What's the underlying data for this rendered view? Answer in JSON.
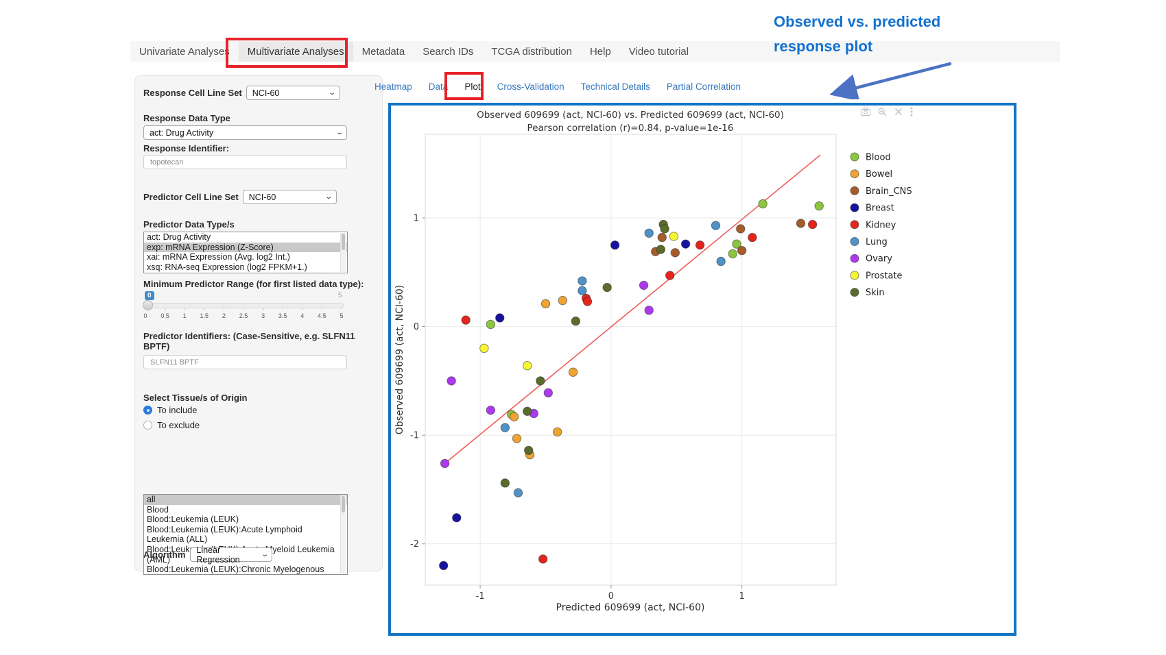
{
  "callout": {
    "line1": "Observed  vs. predicted",
    "line2": "response plot",
    "color": "#1371d1"
  },
  "nav": {
    "items": [
      {
        "label": "Univariate Analyses",
        "active": false
      },
      {
        "label": "Multivariate Analyses",
        "active": true
      },
      {
        "label": "Metadata",
        "active": false
      },
      {
        "label": "Search IDs",
        "active": false
      },
      {
        "label": "TCGA distribution",
        "active": false
      },
      {
        "label": "Help",
        "active": false
      },
      {
        "label": "Video tutorial",
        "active": false
      }
    ]
  },
  "sidebar": {
    "response_cell_line_set": {
      "label": "Response Cell Line Set",
      "value": "NCI-60"
    },
    "response_data_type": {
      "label": "Response Data Type",
      "value": "act: Drug Activity"
    },
    "response_identifier": {
      "label": "Response Identifier:",
      "value": "topotecan"
    },
    "predictor_cell_line_set": {
      "label": "Predictor Cell Line Set",
      "value": "NCI-60"
    },
    "predictor_data_types": {
      "label": "Predictor Data Type/s",
      "options": [
        "act: Drug Activity",
        "exp: mRNA Expression (Z-Score)",
        "xai: mRNA Expression (Avg. log2 Int.)",
        "xsq: RNA-seq Expression (log2 FPKM+1.)"
      ],
      "selected_index": 1
    },
    "min_predictor_range": {
      "label": "Minimum Predictor Range (for first listed data type):",
      "value": "0",
      "max_label": "5",
      "ticks": [
        "0",
        "0.5",
        "1",
        "1.5",
        "2",
        "2.5",
        "3",
        "3.5",
        "4",
        "4.5",
        "5"
      ]
    },
    "predictor_identifiers": {
      "label": "Predictor Identifiers: (Case-Sensitive, e.g. SLFN11 BPTF)",
      "value": "SLFN11 BPTF"
    },
    "tissue_origin": {
      "label": "Select Tissue/s of Origin",
      "radios": [
        {
          "label": "To include",
          "checked": true
        },
        {
          "label": "To exclude",
          "checked": false
        }
      ]
    },
    "tissue_list": {
      "options": [
        "all",
        "Blood",
        "Blood:Leukemia (LEUK)",
        "Blood:Leukemia (LEUK):Acute Lymphoid Leukemia (ALL)",
        "Blood:Leukemia (LEUK):Acute Myeloid Leukemia (AML)",
        "Blood:Leukemia (LEUK):Chronic Myelogenous Leukemia (CML)"
      ],
      "selected_index": 0
    },
    "algorithm": {
      "label": "Algorithm",
      "value": "Linear Regression"
    }
  },
  "tabs": {
    "items": [
      {
        "label": "Heatmap",
        "active": false
      },
      {
        "label": "Data",
        "active": false
      },
      {
        "label": "Plot",
        "active": true
      },
      {
        "label": "Cross-Validation",
        "active": false
      },
      {
        "label": "Technical Details",
        "active": false
      },
      {
        "label": "Partial Correlation",
        "active": false
      }
    ]
  },
  "modebar_icons": [
    "camera-icon",
    "zoom-in-icon",
    "pan-icon",
    "more-options-icon"
  ],
  "chart_data": {
    "type": "scatter",
    "title_line1": "Observed 609699 (act, NCI-60) vs. Predicted 609699 (act, NCI-60)",
    "title_line2": "Pearson correlation (r)=0.84, p-value=1e-16",
    "xlabel": "Predicted 609699 (act, NCI-60)",
    "ylabel": "Observed 609699 (act, NCI-60)",
    "xlim": [
      -1.42,
      1.72
    ],
    "ylim": [
      -2.38,
      1.77
    ],
    "xticks": [
      "-1",
      "0",
      "1"
    ],
    "xtick_vals": [
      -1,
      0,
      1
    ],
    "yticks": [
      "1",
      "0",
      "-1",
      "-2"
    ],
    "ytick_vals": [
      1,
      0,
      -1,
      -2
    ],
    "grid": true,
    "legend_position": "right",
    "regression_line": {
      "x1": -1.27,
      "y1": -1.26,
      "x2": 1.6,
      "y2": 1.58,
      "color": "#ee5c5c"
    },
    "series": [
      {
        "name": "Blood",
        "color": "#8cc63e",
        "points": [
          [
            -0.92,
            0.02
          ],
          [
            -0.76,
            -0.81
          ],
          [
            0.93,
            0.67
          ],
          [
            0.96,
            0.76
          ],
          [
            1.16,
            1.13
          ],
          [
            1.59,
            1.11
          ]
        ]
      },
      {
        "name": "Bowel",
        "color": "#f0a233",
        "points": [
          [
            -0.5,
            0.21
          ],
          [
            -0.37,
            0.24
          ],
          [
            -0.74,
            -0.83
          ],
          [
            -0.72,
            -1.03
          ],
          [
            -0.41,
            -0.97
          ],
          [
            -0.62,
            -1.18
          ],
          [
            -0.29,
            -0.42
          ]
        ]
      },
      {
        "name": "Brain_CNS",
        "color": "#a55b2a",
        "points": [
          [
            0.39,
            0.82
          ],
          [
            0.34,
            0.69
          ],
          [
            0.49,
            0.68
          ],
          [
            0.99,
            0.9
          ],
          [
            1.0,
            0.7
          ],
          [
            1.45,
            0.95
          ]
        ]
      },
      {
        "name": "Breast",
        "color": "#17129e",
        "points": [
          [
            0.03,
            0.75
          ],
          [
            0.57,
            0.76
          ],
          [
            -0.85,
            0.08
          ],
          [
            -1.18,
            -1.76
          ],
          [
            -1.28,
            -2.2
          ]
        ]
      },
      {
        "name": "Kidney",
        "color": "#e3251c",
        "points": [
          [
            -0.19,
            0.26
          ],
          [
            -0.18,
            0.23
          ],
          [
            0.45,
            0.47
          ],
          [
            0.68,
            0.75
          ],
          [
            1.08,
            0.82
          ],
          [
            1.54,
            0.94
          ],
          [
            -1.11,
            0.06
          ],
          [
            -0.52,
            -2.14
          ]
        ]
      },
      {
        "name": "Lung",
        "color": "#4e92c8",
        "points": [
          [
            -0.22,
            0.42
          ],
          [
            -0.22,
            0.33
          ],
          [
            0.29,
            0.86
          ],
          [
            0.8,
            0.93
          ],
          [
            0.84,
            0.6
          ],
          [
            -0.81,
            -0.93
          ],
          [
            -0.71,
            -1.53
          ]
        ]
      },
      {
        "name": "Ovary",
        "color": "#ac39f0",
        "points": [
          [
            0.25,
            0.38
          ],
          [
            0.29,
            0.15
          ],
          [
            -0.48,
            -0.61
          ],
          [
            -0.92,
            -0.77
          ],
          [
            -0.59,
            -0.8
          ],
          [
            -1.27,
            -1.26
          ],
          [
            -1.22,
            -0.5
          ]
        ]
      },
      {
        "name": "Prostate",
        "color": "#f7f731",
        "points": [
          [
            0.48,
            0.83
          ],
          [
            -0.64,
            -0.36
          ],
          [
            -0.97,
            -0.2
          ]
        ]
      },
      {
        "name": "Skin",
        "color": "#5a6b2b",
        "points": [
          [
            -0.27,
            0.05
          ],
          [
            -0.03,
            0.36
          ],
          [
            0.4,
            0.94
          ],
          [
            0.41,
            0.9
          ],
          [
            0.38,
            0.71
          ],
          [
            -0.54,
            -0.5
          ],
          [
            -0.64,
            -0.78
          ],
          [
            -0.63,
            -1.14
          ],
          [
            -0.81,
            -1.44
          ]
        ]
      }
    ]
  }
}
